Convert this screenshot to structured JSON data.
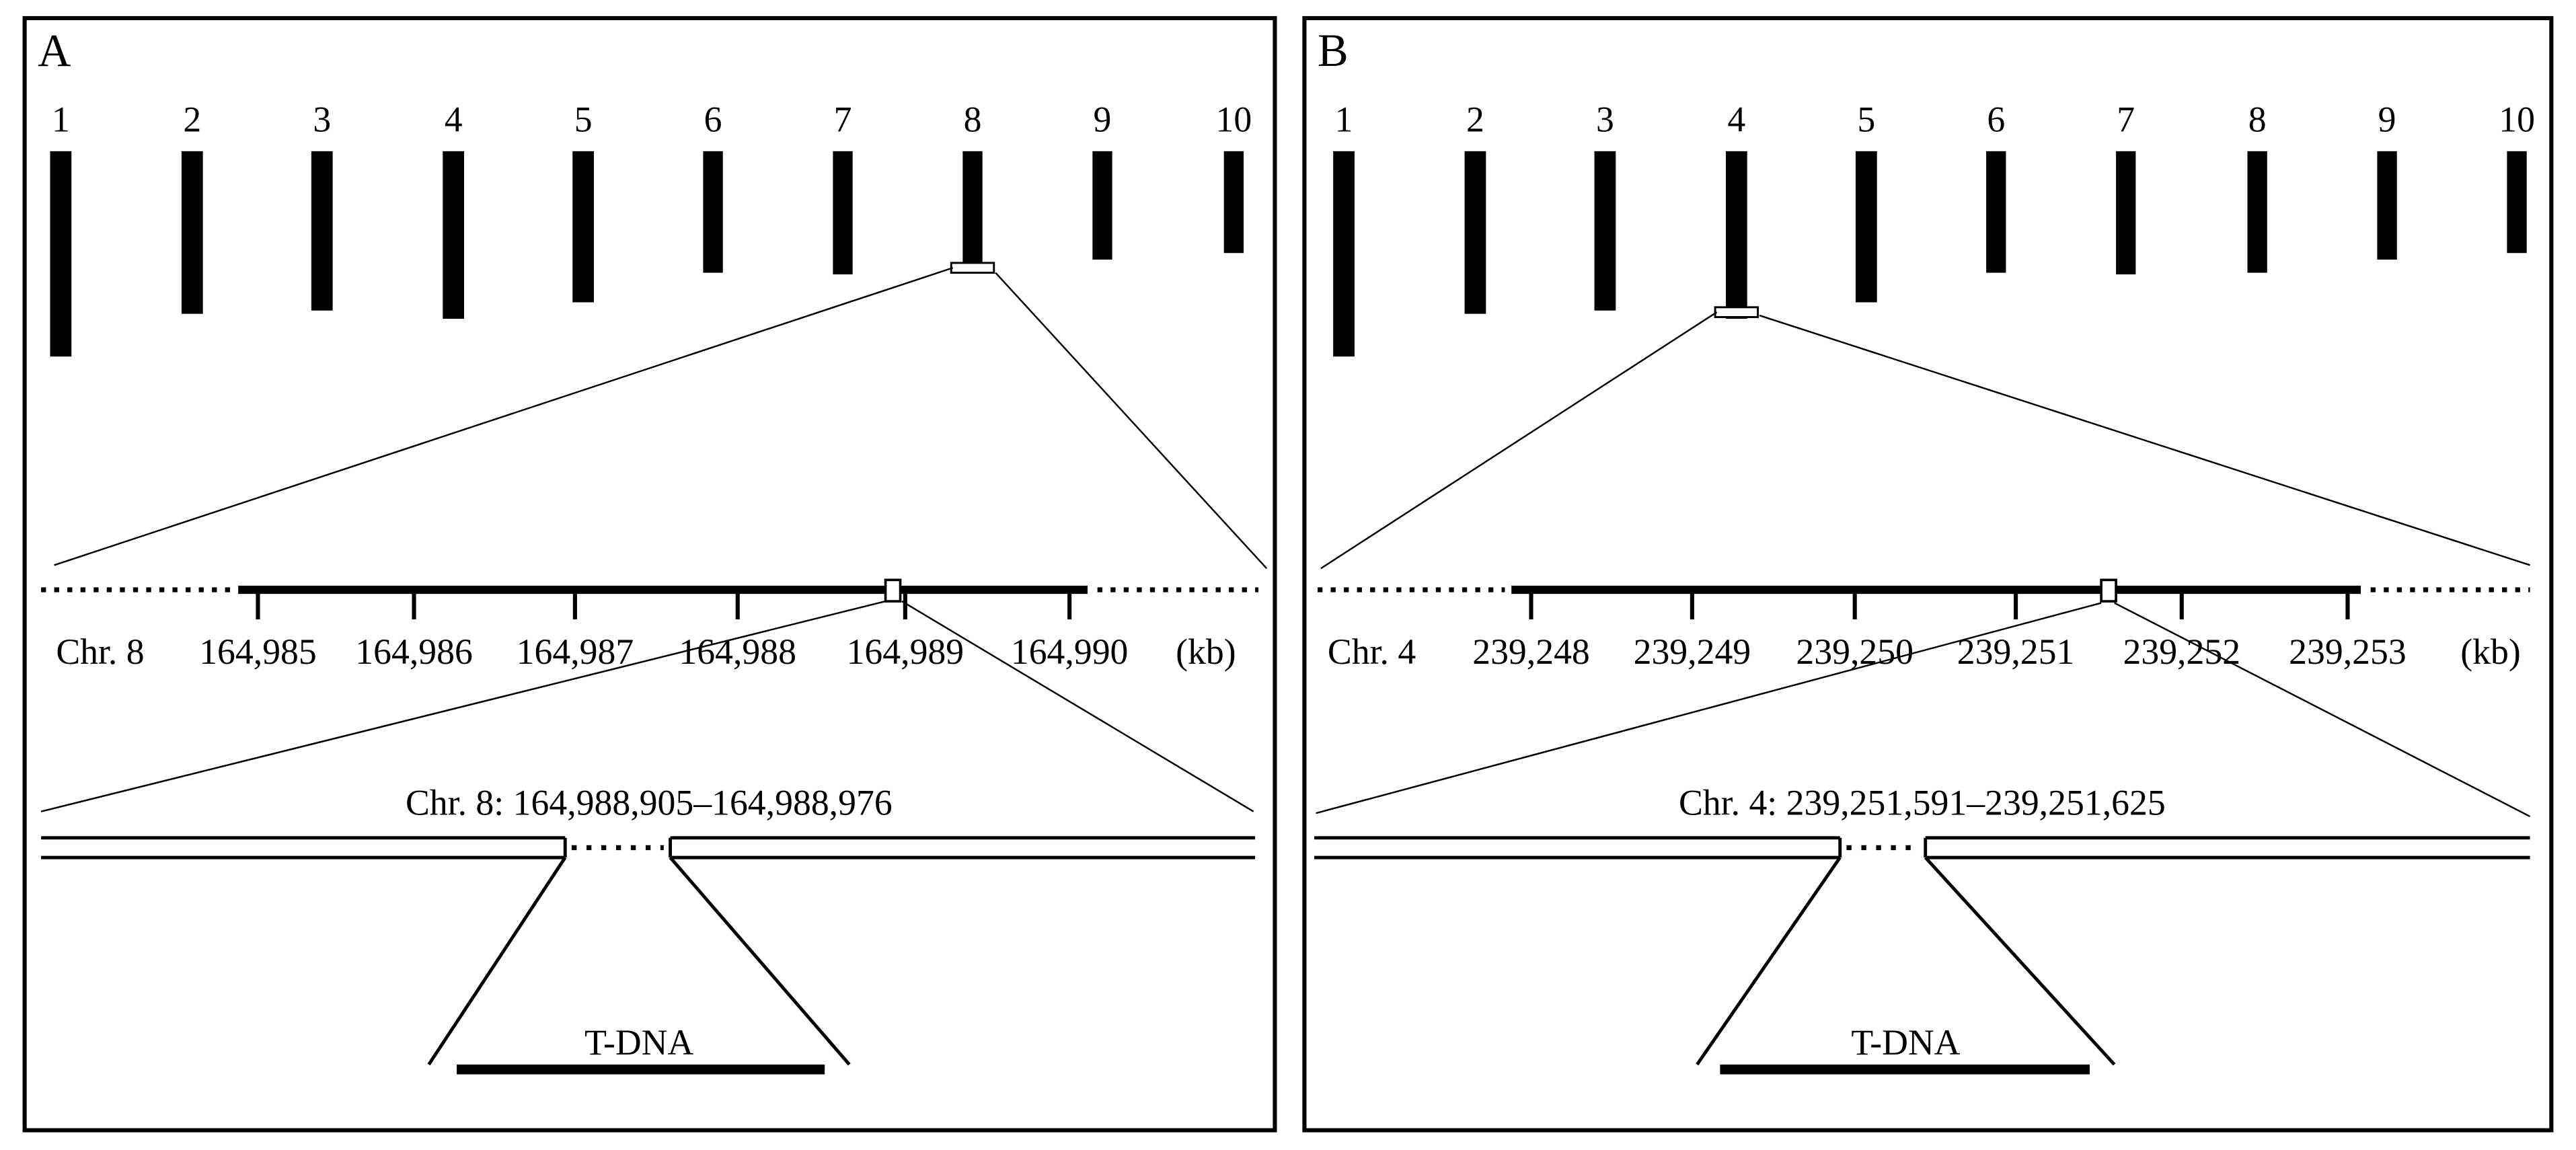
{
  "panels": [
    {
      "label": "A",
      "chromosomes": [
        "1",
        "2",
        "3",
        "4",
        "5",
        "6",
        "7",
        "8",
        "9",
        "10"
      ],
      "chromosome_label": "Chr. 8",
      "scale_ticks": [
        "164,985",
        "164,986",
        "164,987",
        "164,988",
        "164,989",
        "164,990"
      ],
      "scale_unit": "(kb)",
      "region": "Chr. 8: 164,988,905–164,988,976",
      "insert": "T-DNA"
    },
    {
      "label": "B",
      "chromosomes": [
        "1",
        "2",
        "3",
        "4",
        "5",
        "6",
        "7",
        "8",
        "9",
        "10"
      ],
      "chromosome_label": "Chr. 4",
      "scale_ticks": [
        "239,248",
        "239,249",
        "239,250",
        "239,251",
        "239,252",
        "239,253"
      ],
      "scale_unit": "(kb)",
      "region": "Chr. 4: 239,251,591–239,251,625",
      "insert": "T-DNA"
    }
  ]
}
